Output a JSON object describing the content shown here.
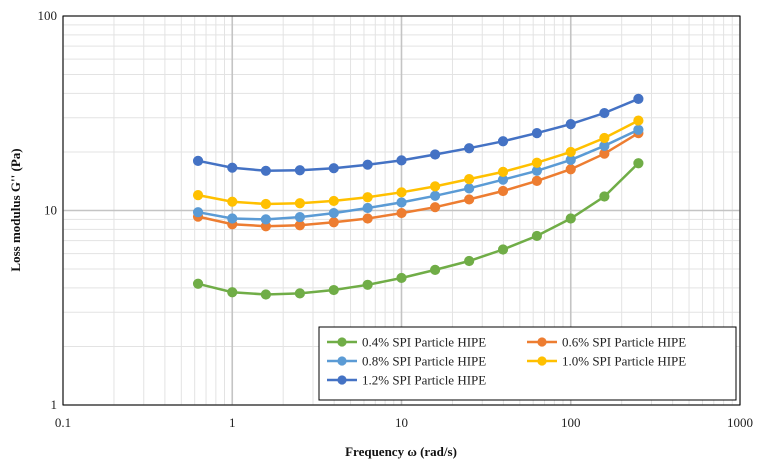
{
  "chart_data": {
    "type": "line",
    "title": "",
    "xlabel": "Frequency ω (rad/s)",
    "ylabel": "Loss modulus G'' (Pa)",
    "xscale": "log",
    "yscale": "log",
    "xlim": [
      0.1,
      1000
    ],
    "ylim": [
      1,
      100
    ],
    "grid": true,
    "legend_position": "bottom-right",
    "x_ticks": [
      {
        "value": 0.1,
        "label": "0.1"
      },
      {
        "value": 1,
        "label": "1"
      },
      {
        "value": 10,
        "label": "10"
      },
      {
        "value": 100,
        "label": "100"
      },
      {
        "value": 1000,
        "label": "1000"
      }
    ],
    "y_ticks": [
      {
        "value": 1,
        "label": "1"
      },
      {
        "value": 10,
        "label": "10"
      },
      {
        "value": 100,
        "label": "100"
      }
    ],
    "x": [
      0.628,
      1.0,
      1.58,
      2.51,
      3.98,
      6.31,
      10.0,
      15.8,
      25.1,
      39.8,
      63.1,
      100,
      158,
      251
    ],
    "series": [
      {
        "name": "0.4% SPI Particle HIPE",
        "color": "#70AD47",
        "values": [
          4.2,
          3.8,
          3.7,
          3.75,
          3.9,
          4.15,
          4.5,
          4.95,
          5.5,
          6.3,
          7.4,
          9.1,
          11.8,
          17.5
        ]
      },
      {
        "name": "0.6% SPI Particle HIPE",
        "color": "#ED7D31",
        "values": [
          9.3,
          8.5,
          8.3,
          8.4,
          8.7,
          9.1,
          9.7,
          10.4,
          11.4,
          12.6,
          14.2,
          16.3,
          19.6,
          25.0
        ]
      },
      {
        "name": "0.8% SPI Particle HIPE",
        "color": "#5B9BD5",
        "values": [
          9.8,
          9.1,
          9.0,
          9.25,
          9.7,
          10.3,
          11.0,
          11.9,
          13.0,
          14.4,
          16.0,
          18.2,
          21.5,
          26.0
        ]
      },
      {
        "name": "1.0% SPI Particle HIPE",
        "color": "#FFC000",
        "values": [
          12.0,
          11.1,
          10.8,
          10.9,
          11.2,
          11.7,
          12.4,
          13.3,
          14.5,
          15.8,
          17.6,
          20.0,
          23.6,
          29.0
        ]
      },
      {
        "name": "1.2% SPI Particle HIPE",
        "color": "#4472C4",
        "values": [
          18.0,
          16.6,
          16.0,
          16.1,
          16.5,
          17.2,
          18.1,
          19.4,
          20.9,
          22.7,
          25.0,
          27.8,
          31.7,
          37.5
        ]
      }
    ]
  }
}
